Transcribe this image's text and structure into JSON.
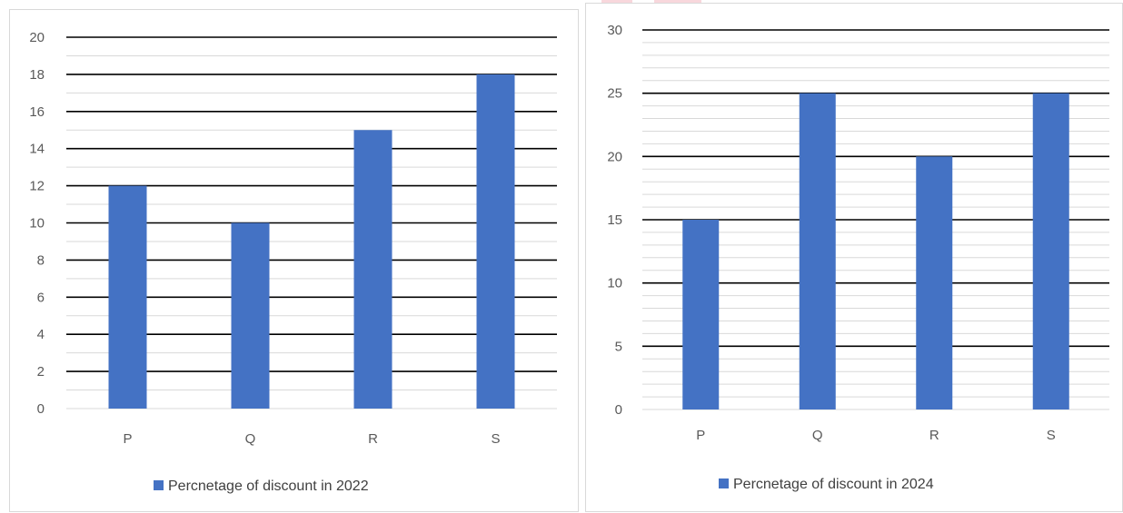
{
  "colors": {
    "bar": "#4472c4",
    "major_grid": "#000000",
    "minor_grid": "#d9d9d9",
    "tick_text": "#595959",
    "legend_text": "#404040"
  },
  "chart_data": [
    {
      "type": "bar",
      "categories": [
        "P",
        "Q",
        "R",
        "S"
      ],
      "series": [
        {
          "name": "Percnetage of discount in 2022",
          "values": [
            12,
            10,
            15,
            18
          ]
        }
      ],
      "ylim": [
        0,
        20
      ],
      "ytick_labels": [
        "0",
        "2",
        "4",
        "6",
        "8",
        "10",
        "12",
        "14",
        "16",
        "18",
        "20"
      ],
      "ytick_values": [
        0,
        2,
        4,
        6,
        8,
        10,
        12,
        14,
        16,
        18,
        20
      ],
      "minor_step": 1,
      "grid": true,
      "legend": "bottom"
    },
    {
      "type": "bar",
      "categories": [
        "P",
        "Q",
        "R",
        "S"
      ],
      "series": [
        {
          "name": "Percnetage of discount in 2024",
          "values": [
            15,
            25,
            20,
            25
          ]
        }
      ],
      "ylim": [
        0,
        30
      ],
      "ytick_labels": [
        "0",
        "5",
        "10",
        "15",
        "20",
        "25",
        "30"
      ],
      "ytick_values": [
        0,
        5,
        10,
        15,
        20,
        25,
        30
      ],
      "minor_step": 1,
      "grid": true,
      "legend": "bottom"
    }
  ]
}
